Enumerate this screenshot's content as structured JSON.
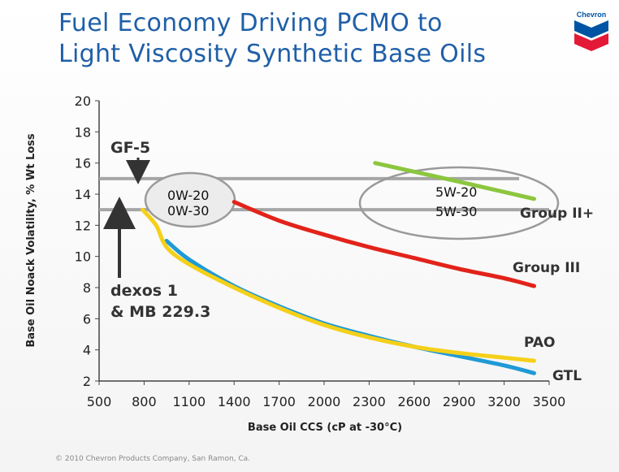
{
  "slide": {
    "title_line1": "Fuel Economy Driving PCMO to",
    "title_line2": "Light Viscosity Synthetic Base Oils",
    "footer": "© 2010 Chevron Products Company, San Ramon, Ca.",
    "logo_text": "Chevron",
    "logo_colors": {
      "blue": "#0054a4",
      "red": "#e31937",
      "white": "#ffffff"
    }
  },
  "chart_data": {
    "type": "line",
    "xlabel": "Base Oil CCS (cP at -30°C)",
    "ylabel": "Base Oil Noack Volatility, % Wt Loss",
    "xlim": [
      500,
      3500
    ],
    "ylim": [
      2,
      20
    ],
    "xticks": [
      500,
      800,
      1100,
      1400,
      1700,
      2000,
      2300,
      2600,
      2900,
      3200,
      3500
    ],
    "yticks": [
      2,
      4,
      6,
      8,
      10,
      12,
      14,
      16,
      18,
      20
    ],
    "grid": false,
    "series": [
      {
        "name": "Group II+",
        "color": "#8cc63f",
        "x": [
          2340,
          2900,
          3400
        ],
        "y": [
          16.0,
          14.8,
          13.7
        ]
      },
      {
        "name": "Group III",
        "color": "#e2231a",
        "x": [
          1400,
          1700,
          2000,
          2300,
          2600,
          2900,
          3200,
          3400
        ],
        "y": [
          13.5,
          12.3,
          11.4,
          10.6,
          9.9,
          9.2,
          8.6,
          8.1
        ]
      },
      {
        "name": "GTL",
        "color": "#1f9ad6",
        "x": [
          950,
          1100,
          1400,
          1700,
          2000,
          2300,
          2600,
          2900,
          3200,
          3400
        ],
        "y": [
          11.0,
          9.8,
          8.1,
          6.8,
          5.7,
          4.9,
          4.2,
          3.6,
          3.0,
          2.5
        ]
      },
      {
        "name": "PAO",
        "color": "#f5d019",
        "x": [
          790,
          880,
          950,
          1100,
          1400,
          1700,
          2000,
          2300,
          2600,
          2900,
          3200,
          3400
        ],
        "y": [
          13.0,
          12.0,
          10.6,
          9.5,
          8.0,
          6.7,
          5.6,
          4.8,
          4.2,
          3.8,
          3.5,
          3.3
        ]
      }
    ],
    "reference_lines": [
      {
        "label": "GF-5",
        "y": 15.0,
        "x_range": [
          500,
          3300
        ]
      },
      {
        "label_line1": "dexos 1",
        "label_line2": "& MB 229.3",
        "y": 13.0,
        "x_range": [
          500,
          3500
        ]
      }
    ],
    "ellipses": [
      {
        "grades": [
          "0W-20",
          "0W-30"
        ]
      },
      {
        "grades": [
          "5W-20",
          "5W-30"
        ]
      }
    ]
  }
}
